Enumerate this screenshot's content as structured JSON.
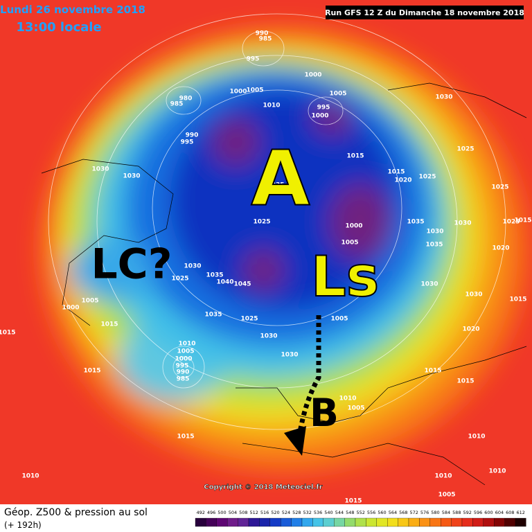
{
  "header": {
    "date": "Lundi 26 novembre 2018",
    "time": "13:00 locale",
    "run": "Run GFS 12 Z du Dimanche 18 novembre 2018"
  },
  "annotations": {
    "high": "A",
    "low_south": "Ls",
    "low_cold": "LC?",
    "blocking": "B"
  },
  "pressure_labels": [
    "990",
    "985",
    "995",
    "1000",
    "980",
    "985",
    "1000",
    "1005",
    "1010",
    "1005",
    "995",
    "1000",
    "990",
    "995",
    "1015",
    "1015",
    "1020",
    "1025",
    "1030",
    "1025",
    "1025",
    "1030",
    "1030",
    "1035",
    "1025",
    "1000",
    "1005",
    "1035",
    "1030",
    "1035",
    "1030",
    "1025",
    "1015",
    "1020",
    "1030",
    "1025",
    "1035",
    "1040",
    "1045",
    "1030",
    "1030",
    "1015",
    "1005",
    "1035",
    "1025",
    "1030",
    "1020",
    "1015",
    "1000",
    "1005",
    "1015",
    "1030",
    "1010",
    "1005",
    "1000",
    "995",
    "990",
    "985",
    "1015",
    "1015",
    "1015",
    "1010",
    "1005",
    "1015",
    "1010",
    "1010",
    "1010",
    "1010",
    "1005",
    "1015"
  ],
  "footer": {
    "copyright": "Copyright © 2018 Meteociel.fr",
    "legend_title": "Géop. Z500 & pression au sol",
    "lead_time": "(+ 192h)",
    "scale": [
      492,
      496,
      500,
      504,
      508,
      512,
      516,
      520,
      524,
      528,
      532,
      536,
      540,
      544,
      548,
      552,
      556,
      560,
      564,
      568,
      572,
      576,
      580,
      584,
      588,
      592,
      596,
      600,
      604,
      608,
      612
    ]
  }
}
